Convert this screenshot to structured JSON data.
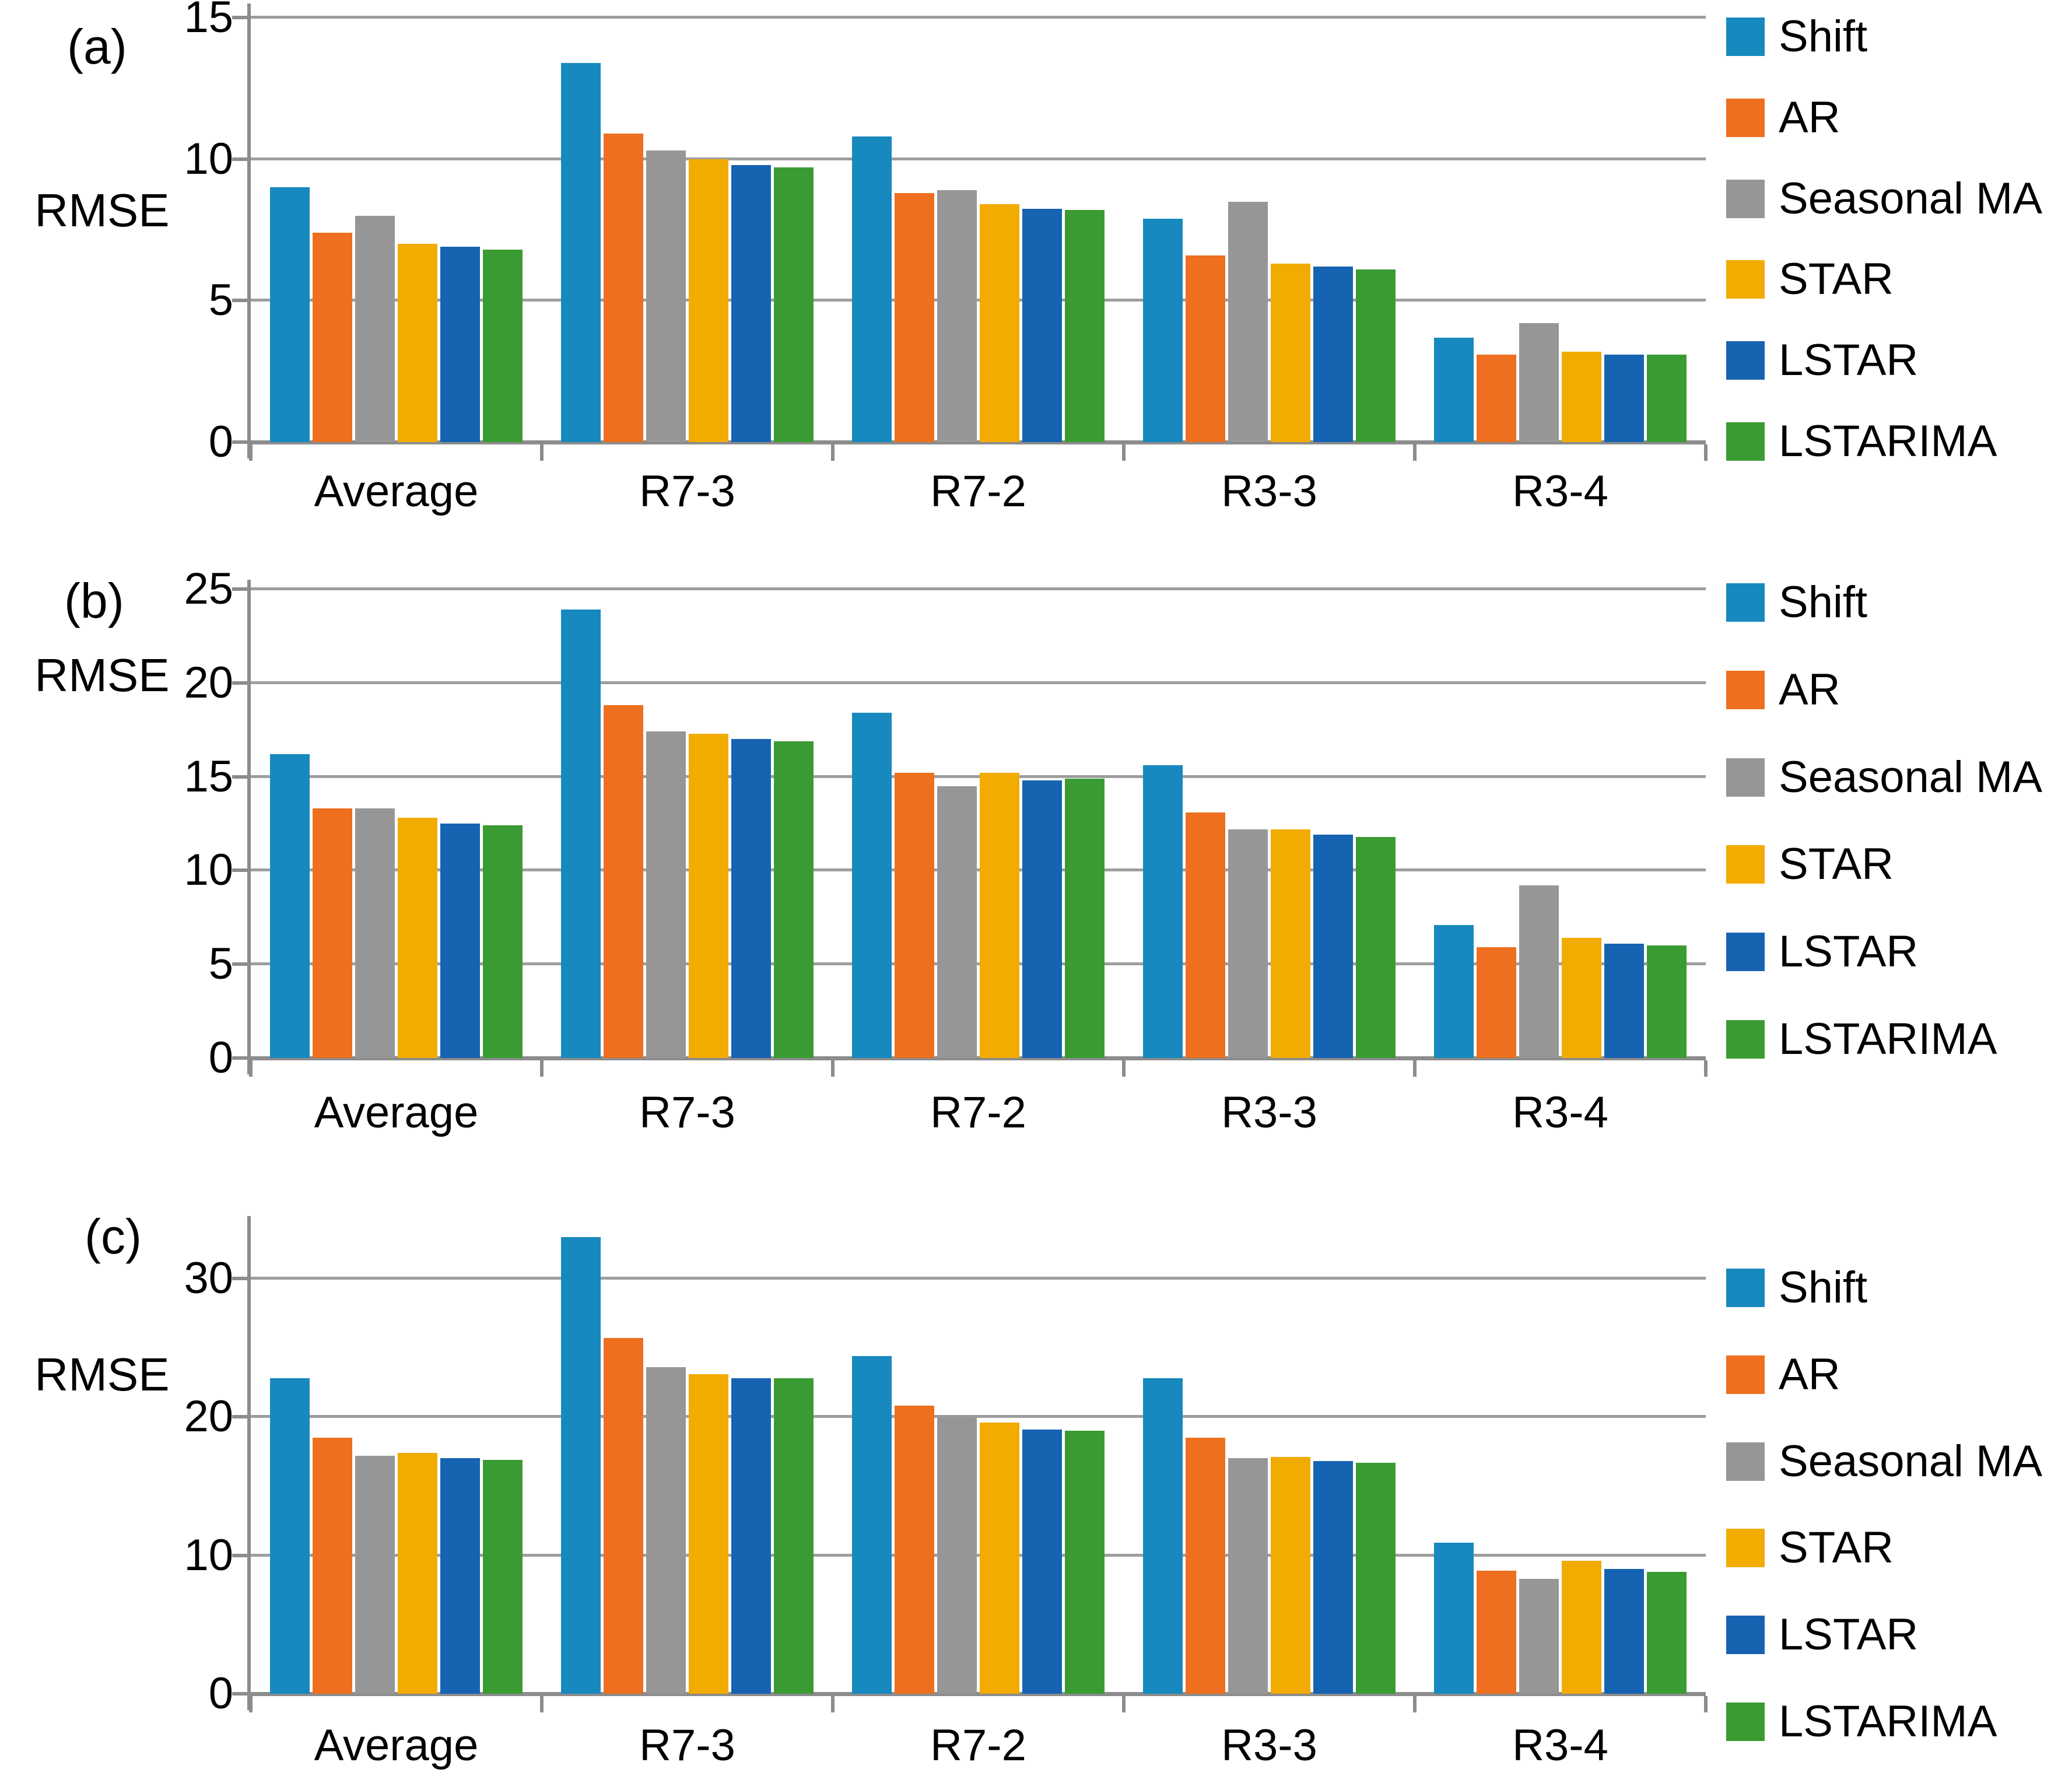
{
  "figure": {
    "panels": [
      {
        "panel_label": "(a)",
        "ylabel": "RMSE"
      },
      {
        "panel_label": "(b)",
        "ylabel": "RMSE"
      },
      {
        "panel_label": "(c)",
        "ylabel": "RMSE"
      }
    ]
  },
  "colors": {
    "shift": "#1789BE",
    "ar": "#ED6F1F",
    "seasonal_ma": "#969696",
    "star": "#F2AB00",
    "lstar": "#1663B2",
    "lstarima": "#3B9B33",
    "gridline": "#9E9E9E",
    "axis": "#8C8C8C"
  },
  "chart_data": [
    {
      "type": "bar",
      "panel": "(a)",
      "title": "",
      "xlabel": "",
      "ylabel": "RMSE",
      "categories": [
        "Average",
        "R7-3",
        "R7-2",
        "R3-3",
        "R3-4"
      ],
      "series": [
        {
          "name": "Shift",
          "color": "#1789BE",
          "values": [
            9.0,
            13.4,
            10.8,
            7.9,
            3.7
          ]
        },
        {
          "name": "AR",
          "color": "#ED6F1F",
          "values": [
            7.4,
            10.9,
            8.8,
            6.6,
            3.1
          ]
        },
        {
          "name": "Seasonal MA",
          "color": "#969696",
          "values": [
            8.0,
            10.3,
            8.9,
            8.5,
            4.2
          ]
        },
        {
          "name": "STAR",
          "color": "#F2AB00",
          "values": [
            7.0,
            10.0,
            8.4,
            6.3,
            3.2
          ]
        },
        {
          "name": "LSTAR",
          "color": "#1663B2",
          "values": [
            6.9,
            9.8,
            8.25,
            6.2,
            3.1
          ]
        },
        {
          "name": "LSTARIMA",
          "color": "#3B9B33",
          "values": [
            6.8,
            9.7,
            8.2,
            6.1,
            3.1
          ]
        }
      ],
      "ylim": [
        0,
        15.5
      ],
      "yticks": [
        0,
        5,
        10,
        15
      ],
      "grid": true,
      "legend_position": "right"
    },
    {
      "type": "bar",
      "panel": "(b)",
      "title": "",
      "xlabel": "",
      "ylabel": "RMSE",
      "categories": [
        "Average",
        "R7-3",
        "R7-2",
        "R3-3",
        "R3-4"
      ],
      "series": [
        {
          "name": "Shift",
          "color": "#1789BE",
          "values": [
            16.2,
            23.9,
            18.4,
            15.6,
            7.1
          ]
        },
        {
          "name": "AR",
          "color": "#ED6F1F",
          "values": [
            13.3,
            18.8,
            15.2,
            13.1,
            5.9
          ]
        },
        {
          "name": "Seasonal MA",
          "color": "#969696",
          "values": [
            13.3,
            17.4,
            14.5,
            12.2,
            9.2
          ]
        },
        {
          "name": "STAR",
          "color": "#F2AB00",
          "values": [
            12.8,
            17.3,
            15.2,
            12.2,
            6.4
          ]
        },
        {
          "name": "LSTAR",
          "color": "#1663B2",
          "values": [
            12.5,
            17.0,
            14.8,
            11.9,
            6.1
          ]
        },
        {
          "name": "LSTARIMA",
          "color": "#3B9B33",
          "values": [
            12.4,
            16.9,
            14.9,
            11.8,
            6.0
          ]
        }
      ],
      "ylim": [
        0,
        25.5
      ],
      "yticks": [
        0,
        5,
        10,
        15,
        20,
        25
      ],
      "grid": true,
      "legend_position": "right"
    },
    {
      "type": "bar",
      "panel": "(c)",
      "title": "",
      "xlabel": "",
      "ylabel": "RMSE",
      "categories": [
        "Average",
        "R7-3",
        "R7-2",
        "R3-3",
        "R3-4"
      ],
      "series": [
        {
          "name": "Shift",
          "color": "#1789BE",
          "values": [
            22.8,
            33.0,
            24.4,
            22.8,
            10.9
          ]
        },
        {
          "name": "AR",
          "color": "#ED6F1F",
          "values": [
            18.5,
            25.7,
            20.8,
            18.5,
            8.9
          ]
        },
        {
          "name": "Seasonal MA",
          "color": "#969696",
          "values": [
            17.2,
            23.6,
            20.0,
            17.0,
            8.3
          ]
        },
        {
          "name": "STAR",
          "color": "#F2AB00",
          "values": [
            17.4,
            23.1,
            19.6,
            17.1,
            9.6
          ]
        },
        {
          "name": "LSTAR",
          "color": "#1663B2",
          "values": [
            17.0,
            22.8,
            19.1,
            16.8,
            9.0
          ]
        },
        {
          "name": "LSTARIMA",
          "color": "#3B9B33",
          "values": [
            16.9,
            22.8,
            19.0,
            16.7,
            8.8
          ]
        }
      ],
      "ylim": [
        0,
        34.5
      ],
      "yticks": [
        0,
        10,
        20,
        30
      ],
      "grid": true,
      "legend_position": "right"
    }
  ]
}
